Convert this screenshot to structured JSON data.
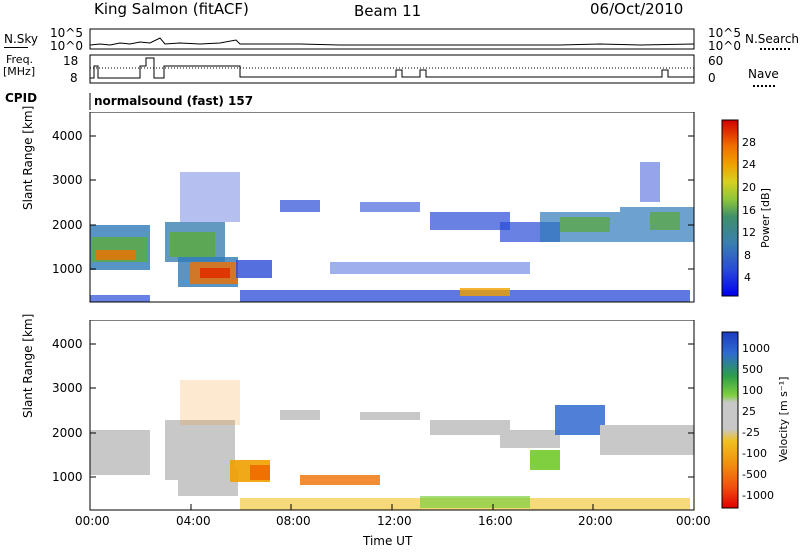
{
  "header": {
    "station": "King Salmon (fitACF)",
    "beam": "Beam 11",
    "date": "06/Oct/2010"
  },
  "top_panel": {
    "left_labels": {
      "nsky": "N.Sky",
      "freq": "Freq.",
      "freq_unit": "[MHz]",
      "cpid": "CPID"
    },
    "right_labels": {
      "nsearch": "N.Search",
      "nave": "Nave"
    },
    "nsky_ticks": [
      "10^5",
      "10^0"
    ],
    "nsearch_ticks": [
      "10^5",
      "10^0"
    ],
    "freq_ticks": [
      "18",
      "8"
    ],
    "nave_ticks": [
      "60",
      "0"
    ],
    "cpid_text": "normalsound (fast) 157"
  },
  "chart_data": [
    {
      "type": "heatmap",
      "name": "power",
      "ylabel": "Slant Range [km]",
      "xlabel": "",
      "ylim": [
        180,
        4500
      ],
      "y_ticks": [
        "4000",
        "3000",
        "2000",
        "1000"
      ],
      "colorbar": {
        "label": "Power [dB]",
        "ticks": [
          "28",
          "24",
          "20",
          "16",
          "12",
          "8",
          "4"
        ],
        "colors": [
          "#0000ee",
          "#2a4bd7",
          "#3a7fb0",
          "#3f8f6a",
          "#5aa84a",
          "#8fc63a",
          "#d8d020",
          "#f0a000",
          "#f07000",
          "#e03000",
          "#d00000"
        ]
      }
    },
    {
      "type": "heatmap",
      "name": "velocity",
      "ylabel": "Slant Range [km]",
      "xlabel": "Time UT",
      "ylim": [
        180,
        4500
      ],
      "y_ticks": [
        "4000",
        "3000",
        "2000",
        "1000"
      ],
      "x_ticks": [
        "00:00",
        "04:00",
        "08:00",
        "12:00",
        "16:00",
        "20:00",
        "00:00"
      ],
      "colorbar": {
        "label": "Velocity [m s⁻¹]",
        "ticks": [
          "1000",
          "500",
          "100",
          "25",
          "-25",
          "-100",
          "-500",
          "-1000"
        ],
        "colors": [
          "#1c3cbf",
          "#2f6ad0",
          "#2e9e4a",
          "#7fcf40",
          "#c8c8c8",
          "#c8c8c8",
          "#f0c020",
          "#f09010",
          "#f05010",
          "#e00000"
        ]
      }
    }
  ]
}
